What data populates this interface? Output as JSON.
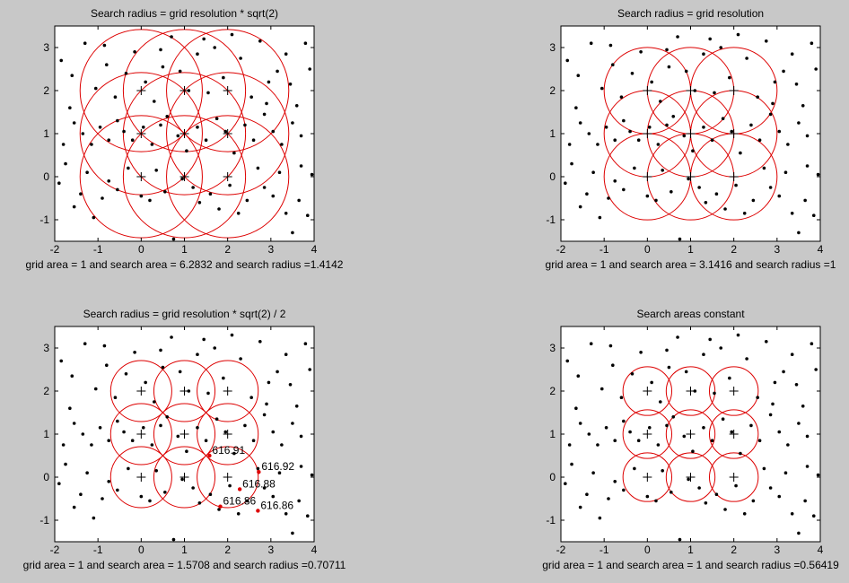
{
  "figure": {
    "background": "#c8c8c8",
    "axes_background": "#ffffff",
    "circle_color": "#dd0000",
    "point_color": "#000000"
  },
  "chart_data": [
    {
      "type": "scatter",
      "title": "Search radius = grid resolution * sqrt(2)",
      "xlabel": "grid area = 1 and search area = 6.2832 and search radius =1.4142",
      "ylabel": "",
      "xlim": [
        -2,
        4
      ],
      "ylim": [
        -1.5,
        3.5
      ],
      "xticks": [
        -2,
        -1,
        0,
        1,
        2,
        3,
        4
      ],
      "yticks": [
        -1,
        0,
        1,
        2,
        3
      ],
      "grid": false,
      "search_radius": 1.4142,
      "grid_nodes": [
        [
          0,
          0
        ],
        [
          1,
          0
        ],
        [
          2,
          0
        ],
        [
          0,
          1
        ],
        [
          1,
          1
        ],
        [
          2,
          1
        ],
        [
          0,
          2
        ],
        [
          1,
          2
        ],
        [
          2,
          2
        ]
      ],
      "annotations": []
    },
    {
      "type": "scatter",
      "title": "Search radius = grid resolution",
      "xlabel": "grid area = 1 and search area = 3.1416 and search radius =1",
      "ylabel": "",
      "xlim": [
        -2,
        4
      ],
      "ylim": [
        -1.5,
        3.5
      ],
      "xticks": [
        -2,
        -1,
        0,
        1,
        2,
        3,
        4
      ],
      "yticks": [
        -1,
        0,
        1,
        2,
        3
      ],
      "grid": false,
      "search_radius": 1,
      "grid_nodes": [
        [
          0,
          0
        ],
        [
          1,
          0
        ],
        [
          2,
          0
        ],
        [
          0,
          1
        ],
        [
          1,
          1
        ],
        [
          2,
          1
        ],
        [
          0,
          2
        ],
        [
          1,
          2
        ],
        [
          2,
          2
        ]
      ],
      "annotations": []
    },
    {
      "type": "scatter",
      "title": "Search radius = grid resolution * sqrt(2) / 2",
      "xlabel": "grid area = 1 and search area = 1.5708 and search radius =0.70711",
      "ylabel": "",
      "xlim": [
        -2,
        4
      ],
      "ylim": [
        -1.5,
        3.5
      ],
      "xticks": [
        -2,
        -1,
        0,
        1,
        2,
        3,
        4
      ],
      "yticks": [
        -1,
        0,
        1,
        2,
        3
      ],
      "grid": false,
      "search_radius": 0.70711,
      "grid_nodes": [
        [
          0,
          0
        ],
        [
          1,
          0
        ],
        [
          2,
          0
        ],
        [
          0,
          1
        ],
        [
          1,
          1
        ],
        [
          2,
          1
        ],
        [
          0,
          2
        ],
        [
          1,
          2
        ],
        [
          2,
          2
        ]
      ],
      "annotations": [
        {
          "x": 1.58,
          "y": 0.5,
          "text": "616.91"
        },
        {
          "x": 2.72,
          "y": 0.12,
          "text": "616.92"
        },
        {
          "x": 2.28,
          "y": -0.28,
          "text": "616.88"
        },
        {
          "x": 1.83,
          "y": -0.68,
          "text": "616.86"
        },
        {
          "x": 2.7,
          "y": -0.78,
          "text": "616.86"
        }
      ]
    },
    {
      "type": "scatter",
      "title": "Search areas constant",
      "xlabel": "grid area = 1 and search area = 1 and search radius =0.56419",
      "ylabel": "",
      "xlim": [
        -2,
        4
      ],
      "ylim": [
        -1.5,
        3.5
      ],
      "xticks": [
        -2,
        -1,
        0,
        1,
        2,
        3,
        4
      ],
      "yticks": [
        -1,
        0,
        1,
        2,
        3
      ],
      "grid": false,
      "search_radius": 0.56419,
      "grid_nodes": [
        [
          0,
          0
        ],
        [
          1,
          0
        ],
        [
          2,
          0
        ],
        [
          0,
          1
        ],
        [
          1,
          1
        ],
        [
          2,
          1
        ],
        [
          0,
          2
        ],
        [
          1,
          2
        ],
        [
          2,
          2
        ]
      ],
      "annotations": []
    }
  ],
  "scatter_points": [
    [
      -1.9,
      -0.15
    ],
    [
      -1.75,
      0.3
    ],
    [
      -1.55,
      -0.7
    ],
    [
      -1.4,
      -0.4
    ],
    [
      -1.25,
      0.1
    ],
    [
      -1.1,
      -0.95
    ],
    [
      -0.9,
      -0.5
    ],
    [
      -0.75,
      -0.1
    ],
    [
      -0.55,
      -0.3
    ],
    [
      -0.3,
      0.2
    ],
    [
      0.0,
      -0.45
    ],
    [
      0.2,
      -0.55
    ],
    [
      0.35,
      0.15
    ],
    [
      0.55,
      -0.35
    ],
    [
      0.75,
      -1.45
    ],
    [
      0.95,
      -0.05
    ],
    [
      1.2,
      -0.25
    ],
    [
      1.35,
      -0.6
    ],
    [
      1.6,
      -0.4
    ],
    [
      1.8,
      -0.75
    ],
    [
      2.05,
      -0.2
    ],
    [
      2.25,
      -0.85
    ],
    [
      2.45,
      -0.55
    ],
    [
      2.7,
      0.2
    ],
    [
      2.85,
      -0.25
    ],
    [
      3.05,
      -0.45
    ],
    [
      3.2,
      0.1
    ],
    [
      3.35,
      -0.85
    ],
    [
      3.5,
      -1.3
    ],
    [
      3.65,
      -0.55
    ],
    [
      3.85,
      -0.9
    ],
    [
      3.95,
      0.05
    ],
    [
      -1.8,
      0.75
    ],
    [
      -1.55,
      1.25
    ],
    [
      -1.35,
      1.0
    ],
    [
      -1.15,
      0.75
    ],
    [
      -0.95,
      1.15
    ],
    [
      -0.75,
      0.85
    ],
    [
      -0.55,
      1.3
    ],
    [
      -0.4,
      1.05
    ],
    [
      -0.2,
      0.85
    ],
    [
      0.05,
      1.15
    ],
    [
      0.25,
      0.75
    ],
    [
      0.45,
      1.2
    ],
    [
      0.6,
      1.4
    ],
    [
      0.85,
      0.95
    ],
    [
      1.05,
      0.6
    ],
    [
      1.3,
      1.15
    ],
    [
      1.5,
      0.85
    ],
    [
      1.75,
      1.35
    ],
    [
      1.95,
      1.05
    ],
    [
      2.15,
      0.55
    ],
    [
      2.4,
      1.2
    ],
    [
      2.6,
      0.85
    ],
    [
      2.85,
      1.45
    ],
    [
      3.05,
      1.05
    ],
    [
      3.25,
      0.75
    ],
    [
      3.5,
      1.25
    ],
    [
      3.7,
      0.95
    ],
    [
      -1.85,
      2.7
    ],
    [
      -1.6,
      2.35
    ],
    [
      -1.3,
      3.1
    ],
    [
      -1.05,
      2.05
    ],
    [
      -0.8,
      2.6
    ],
    [
      -0.6,
      1.85
    ],
    [
      -0.35,
      2.4
    ],
    [
      -0.15,
      2.9
    ],
    [
      0.1,
      2.2
    ],
    [
      0.3,
      1.75
    ],
    [
      0.5,
      2.55
    ],
    [
      0.7,
      3.25
    ],
    [
      0.9,
      2.45
    ],
    [
      1.1,
      2.0
    ],
    [
      1.3,
      2.85
    ],
    [
      1.55,
      1.95
    ],
    [
      1.7,
      3.0
    ],
    [
      1.9,
      2.3
    ],
    [
      2.1,
      3.3
    ],
    [
      2.3,
      2.75
    ],
    [
      2.55,
      1.85
    ],
    [
      2.75,
      3.15
    ],
    [
      2.95,
      2.2
    ],
    [
      3.15,
      2.45
    ],
    [
      3.35,
      2.85
    ],
    [
      3.45,
      2.15
    ],
    [
      3.6,
      1.65
    ],
    [
      3.8,
      3.1
    ],
    [
      3.9,
      2.5
    ],
    [
      -1.65,
      1.6
    ],
    [
      -0.85,
      3.05
    ],
    [
      0.45,
      2.95
    ],
    [
      1.45,
      3.2
    ],
    [
      2.9,
      1.7
    ],
    [
      3.7,
      0.25
    ]
  ]
}
